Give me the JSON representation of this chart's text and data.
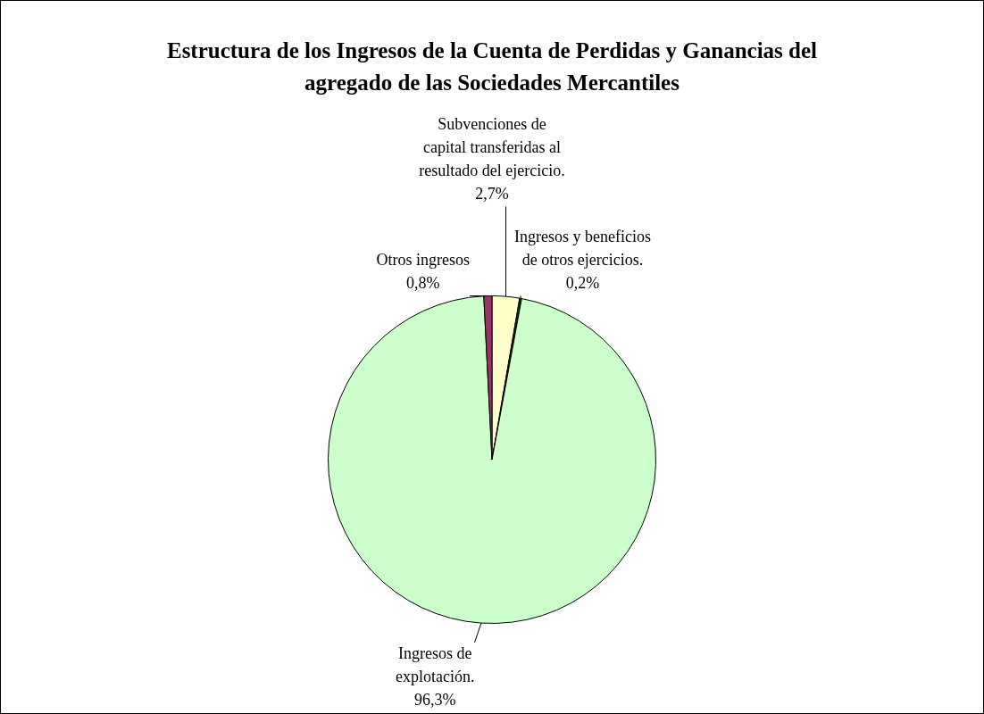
{
  "chart_data": {
    "type": "pie",
    "title": "Estructura de los Ingresos de la Cuenta de Perdidas y Ganancias del agregado de las Sociedades Mercantiles",
    "categories": [
      "Subvenciones de capital transferidas al resultado del ejercicio.",
      "Ingresos y beneficios de otros ejercicios.",
      "Ingresos de explotación.",
      "Otros ingresos"
    ],
    "values": [
      2.7,
      0.2,
      96.3,
      0.8
    ],
    "value_labels": [
      "2,7%",
      "0,2%",
      "96,3%",
      "0,8%"
    ],
    "colors": [
      "#ffffcc",
      "#004000",
      "#ccffcc",
      "#993366"
    ],
    "legend": false
  }
}
